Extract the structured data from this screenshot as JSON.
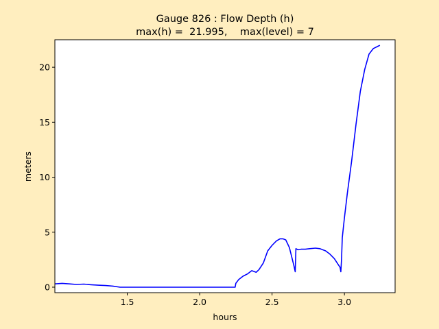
{
  "chart_data": {
    "type": "line",
    "title_line1": "Gauge 826 : Flow Depth (h)",
    "title_line2": "max(h) =  21.995,    max(level) = 7",
    "xlabel": "hours",
    "ylabel": "meters",
    "xlim": [
      1.0,
      3.35
    ],
    "ylim": [
      -0.5,
      22.5
    ],
    "xticks": [
      1.5,
      2.0,
      2.5,
      3.0
    ],
    "xtick_labels": [
      "1.5",
      "2.0",
      "2.5",
      "3.0"
    ],
    "yticks": [
      0,
      5,
      10,
      15,
      20
    ],
    "ytick_labels": [
      "0",
      "5",
      "10",
      "15",
      "20"
    ],
    "grid": false,
    "colors": {
      "figure_bg": "#ffeebf",
      "axes_bg": "#ffffff",
      "line": "#0000ff"
    },
    "series": [
      {
        "x": [
          1.0,
          1.05,
          1.1,
          1.15,
          1.2,
          1.25,
          1.3,
          1.35,
          1.4,
          1.45,
          1.5,
          1.6,
          1.8,
          2.0,
          2.1,
          2.2,
          2.245,
          2.25,
          2.27,
          2.3,
          2.33,
          2.36,
          2.39,
          2.41,
          2.44,
          2.47,
          2.5,
          2.53,
          2.555,
          2.575,
          2.595,
          2.62,
          2.65,
          2.66,
          2.665,
          2.68,
          2.7,
          2.73,
          2.76,
          2.8,
          2.83,
          2.87,
          2.9,
          2.93,
          2.96,
          2.97,
          2.975,
          2.98,
          2.985,
          3.0,
          3.02,
          3.05,
          3.08,
          3.11,
          3.14,
          3.17,
          3.2,
          3.23,
          3.245
        ],
        "y": [
          0.3,
          0.35,
          0.3,
          0.25,
          0.28,
          0.22,
          0.18,
          0.15,
          0.1,
          0.0,
          0.0,
          0.0,
          0.0,
          0.0,
          0.0,
          0.0,
          0.0,
          0.35,
          0.7,
          1.0,
          1.2,
          1.5,
          1.35,
          1.6,
          2.2,
          3.3,
          3.8,
          4.2,
          4.4,
          4.4,
          4.3,
          3.6,
          2.0,
          1.4,
          3.5,
          3.4,
          3.45,
          3.45,
          3.5,
          3.55,
          3.5,
          3.3,
          3.0,
          2.6,
          2.0,
          1.8,
          1.4,
          2.5,
          4.5,
          6.3,
          8.5,
          11.5,
          14.8,
          17.8,
          19.8,
          21.2,
          21.7,
          21.9,
          21.995
        ]
      }
    ]
  }
}
